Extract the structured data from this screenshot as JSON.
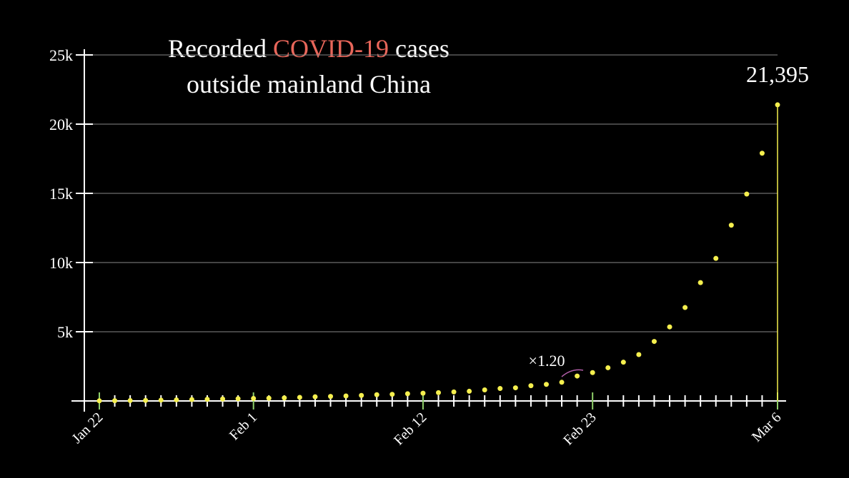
{
  "chart_data": {
    "type": "scatter",
    "title": {
      "before": "Recorded",
      "highlight": "COVID-19",
      "after": "cases",
      "line2": "outside mainland China"
    },
    "categories": [
      "Jan 22",
      null,
      null,
      null,
      null,
      null,
      null,
      null,
      null,
      null,
      "Feb 1",
      null,
      null,
      null,
      null,
      null,
      null,
      null,
      null,
      null,
      null,
      "Feb 12",
      null,
      null,
      null,
      null,
      null,
      null,
      null,
      null,
      null,
      null,
      "Feb 23",
      null,
      null,
      null,
      null,
      null,
      null,
      null,
      null,
      null,
      null,
      null,
      "Mar 6"
    ],
    "values": [
      10,
      20,
      30,
      40,
      60,
      80,
      100,
      120,
      140,
      160,
      180,
      200,
      220,
      260,
      300,
      330,
      360,
      400,
      450,
      480,
      520,
      560,
      600,
      650,
      700,
      800,
      900,
      950,
      1100,
      1200,
      1350,
      1800,
      2050,
      2400,
      2800,
      3350,
      4300,
      5350,
      6750,
      8550,
      10300,
      12700,
      14950,
      17900,
      21395
    ],
    "value_labels": {
      "44": "21,395"
    },
    "color": "#f5ef4e",
    "title_highlight_color": "#e8665a",
    "annotation": {
      "text": "×1.20",
      "color": "#b25ea8"
    },
    "ylim": [
      0,
      25000
    ],
    "yticks": [
      {
        "value": 5000,
        "label": "5k"
      },
      {
        "value": 10000,
        "label": "10k"
      },
      {
        "value": 15000,
        "label": "15k"
      },
      {
        "value": 20000,
        "label": "20k"
      },
      {
        "value": 25000,
        "label": "25k"
      }
    ],
    "grid": true
  }
}
